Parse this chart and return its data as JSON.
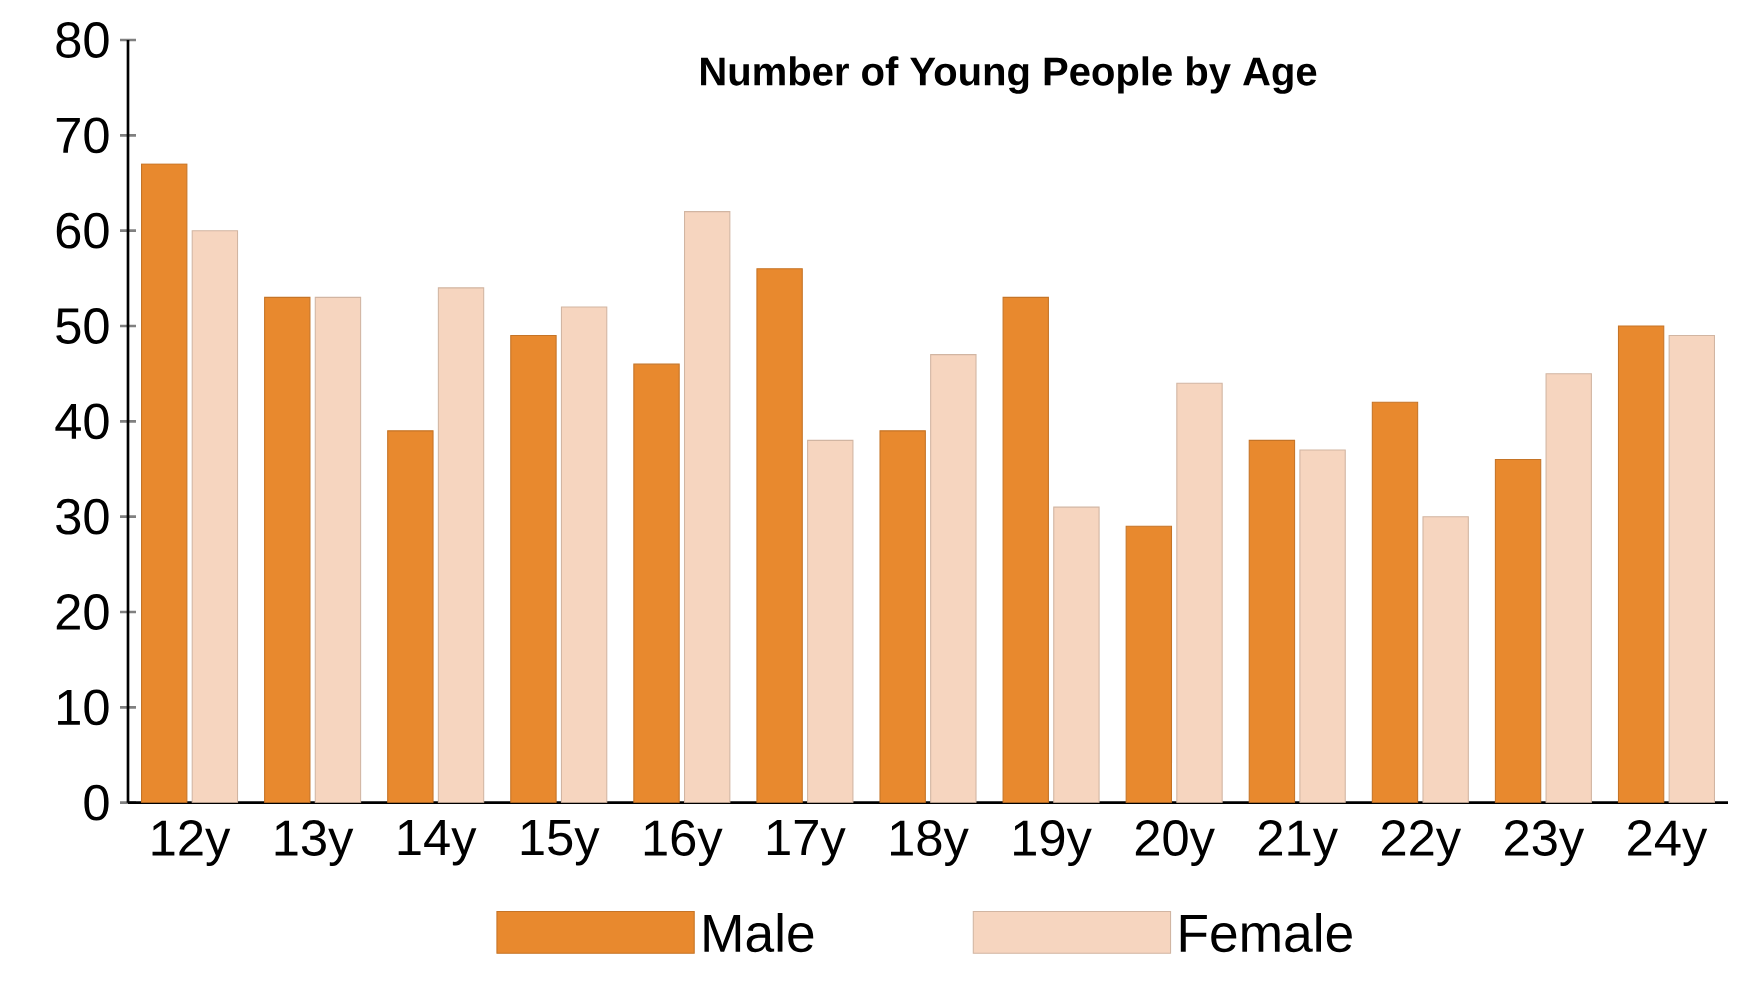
{
  "chart_data": {
    "type": "bar",
    "title": "Number of Young People by Age",
    "categories": [
      "12y",
      "13y",
      "14y",
      "15y",
      "16y",
      "17y",
      "18y",
      "19y",
      "20y",
      "21y",
      "22y",
      "23y",
      "24y"
    ],
    "series": [
      {
        "name": "Male",
        "color": "#e8892e",
        "values": [
          67,
          53,
          39,
          49,
          46,
          56,
          39,
          53,
          29,
          38,
          42,
          36,
          50
        ]
      },
      {
        "name": "Female",
        "color": "#f6d5bf",
        "values": [
          60,
          53,
          54,
          52,
          62,
          38,
          47,
          31,
          44,
          37,
          30,
          45,
          49
        ]
      }
    ],
    "ylim": [
      0,
      80
    ],
    "yticks": [
      0,
      10,
      20,
      30,
      40,
      50,
      60,
      70,
      80
    ],
    "grid": false,
    "legend": "bottom"
  }
}
